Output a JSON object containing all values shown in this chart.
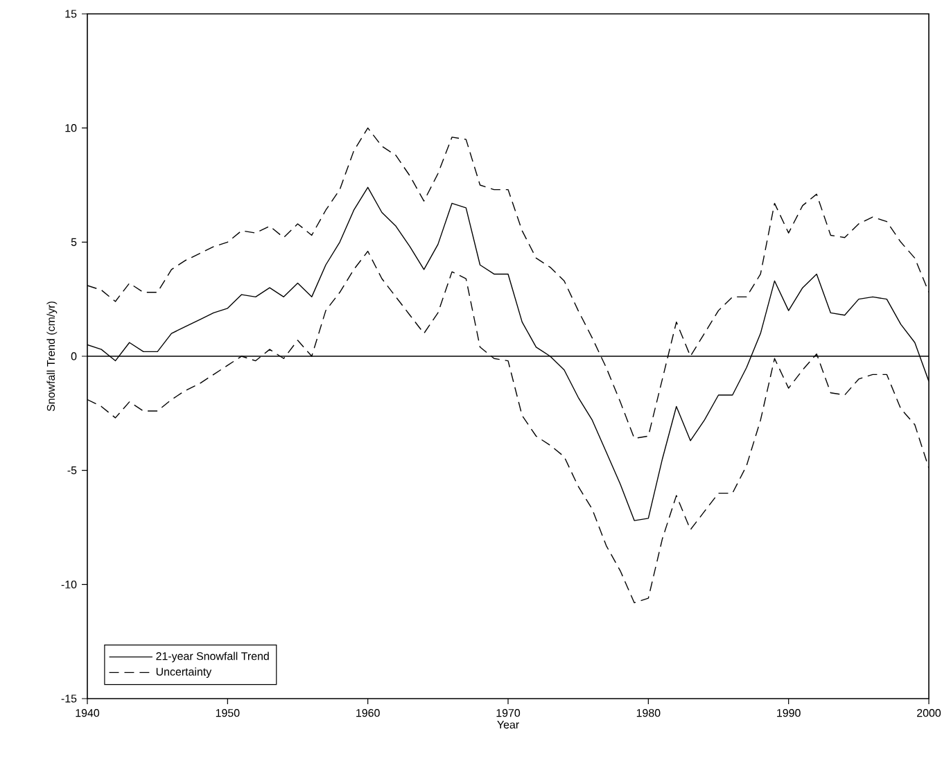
{
  "chart_data": {
    "type": "line",
    "xlabel": "Year",
    "ylabel": "Snowfall Trend (cm/yr)",
    "x": [
      1940,
      1941,
      1942,
      1943,
      1944,
      1945,
      1946,
      1947,
      1948,
      1949,
      1950,
      1951,
      1952,
      1953,
      1954,
      1955,
      1956,
      1957,
      1958,
      1959,
      1960,
      1961,
      1962,
      1963,
      1964,
      1965,
      1966,
      1967,
      1968,
      1969,
      1970,
      1971,
      1972,
      1973,
      1974,
      1975,
      1976,
      1977,
      1978,
      1979,
      1980,
      1981,
      1982,
      1983,
      1984,
      1985,
      1986,
      1987,
      1988,
      1989,
      1990,
      1991,
      1992,
      1993,
      1994,
      1995,
      1996,
      1997,
      1998,
      1999,
      2000
    ],
    "series": [
      {
        "name": "21-year Snowfall Trend",
        "color": "#000000",
        "line_style": "solid",
        "values": [
          0.5,
          0.3,
          -0.2,
          0.6,
          0.2,
          0.2,
          1.0,
          1.3,
          1.6,
          1.9,
          2.1,
          2.7,
          2.6,
          3.0,
          2.6,
          3.2,
          2.6,
          4.0,
          5.0,
          6.4,
          7.4,
          6.3,
          5.7,
          4.8,
          3.8,
          4.9,
          6.7,
          6.5,
          4.0,
          3.6,
          3.6,
          1.5,
          0.4,
          0.0,
          -0.6,
          -1.8,
          -2.8,
          -4.2,
          -5.6,
          -7.2,
          -7.1,
          -4.5,
          -2.2,
          -3.7,
          -2.8,
          -1.7,
          -1.7,
          -0.5,
          1.0,
          3.3,
          2.0,
          3.0,
          3.6,
          1.9,
          1.8,
          2.5,
          2.6,
          2.5,
          1.4,
          0.6,
          -1.1
        ]
      },
      {
        "name": "Uncertainty",
        "color": "#000000",
        "line_style": "dashed",
        "values": [
          3.1,
          2.9,
          2.4,
          3.2,
          2.8,
          2.8,
          3.8,
          4.2,
          4.5,
          4.8,
          5.0,
          5.5,
          5.4,
          5.7,
          5.2,
          5.8,
          5.3,
          6.4,
          7.3,
          9.0,
          10.0,
          9.2,
          8.8,
          7.9,
          6.8,
          8.0,
          9.6,
          9.5,
          7.5,
          7.3,
          7.3,
          5.5,
          4.3,
          3.9,
          3.3,
          2.0,
          0.8,
          -0.5,
          -2.0,
          -3.6,
          -3.5,
          -1.0,
          1.5,
          0.0,
          1.0,
          2.0,
          2.6,
          2.6,
          3.6,
          6.7,
          5.4,
          6.6,
          7.1,
          5.3,
          5.2,
          5.8,
          6.1,
          5.9,
          5.0,
          4.3,
          2.8
        ]
      },
      {
        "color": "#000000",
        "line_style": "dashed",
        "values": [
          -1.9,
          -2.2,
          -2.7,
          -2.0,
          -2.4,
          -2.4,
          -1.9,
          -1.5,
          -1.2,
          -0.8,
          -0.4,
          0.0,
          -0.2,
          0.3,
          -0.1,
          0.7,
          0.0,
          2.0,
          2.8,
          3.8,
          4.6,
          3.4,
          2.6,
          1.8,
          1.0,
          1.9,
          3.7,
          3.4,
          0.4,
          -0.1,
          -0.2,
          -2.6,
          -3.5,
          -3.9,
          -4.4,
          -5.7,
          -6.7,
          -8.3,
          -9.4,
          -10.8,
          -10.6,
          -8.0,
          -6.1,
          -7.6,
          -6.8,
          -6.0,
          -6.0,
          -4.8,
          -2.8,
          -0.1,
          -1.4,
          -0.6,
          0.1,
          -1.6,
          -1.7,
          -1.0,
          -0.8,
          -0.8,
          -2.3,
          -3.0,
          -4.9
        ]
      }
    ],
    "xlim": [
      1940,
      2000
    ],
    "xticks": [
      1940,
      1950,
      1960,
      1970,
      1980,
      1990,
      2000
    ],
    "ylim": [
      -15,
      15
    ],
    "yticks": [
      -15,
      -10,
      -5,
      0,
      5,
      10,
      15
    ],
    "ref_lines": [
      {
        "axis": "y",
        "value": 0,
        "color": "#000000",
        "line_style": "solid"
      }
    ],
    "grid": false,
    "legend": "bottom left",
    "marker": "none"
  }
}
